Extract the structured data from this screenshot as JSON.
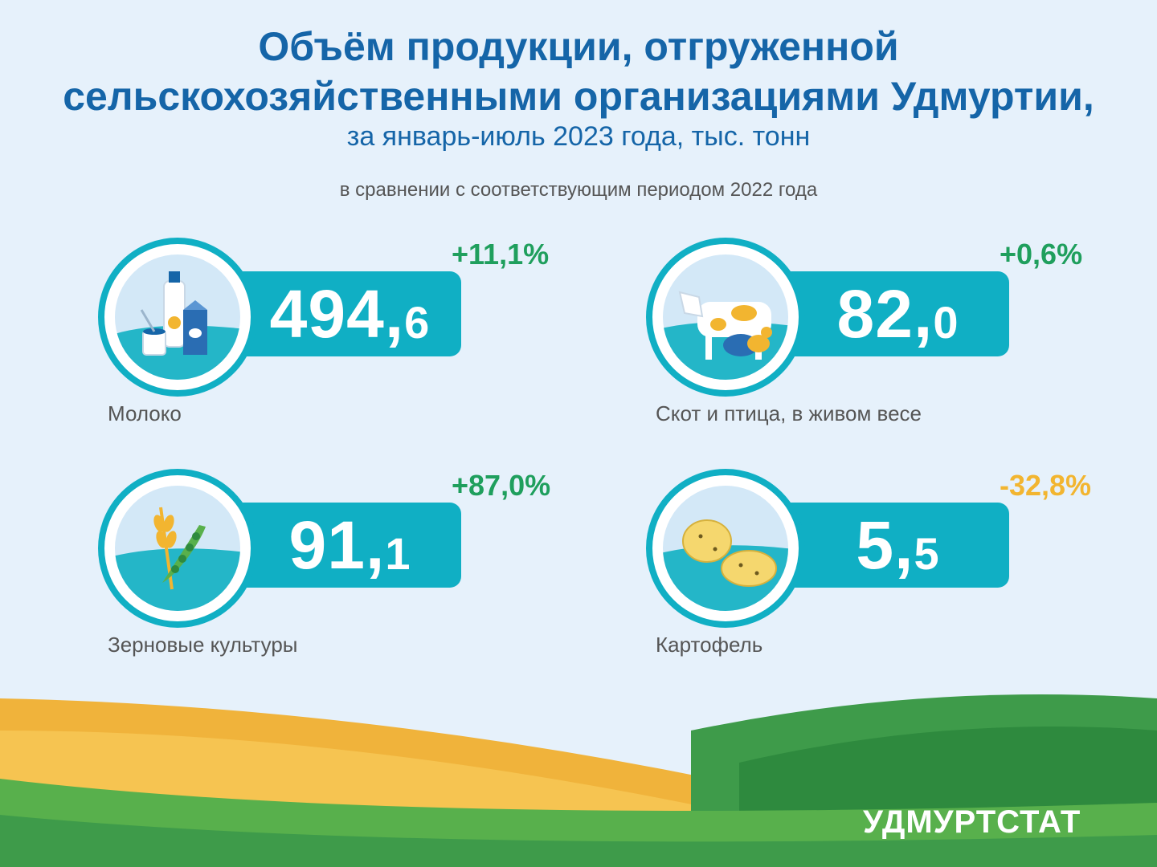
{
  "header": {
    "title_line1": "Объём продукции, отгруженной",
    "title_line2": "сельскохозяйственными организациями Удмуртии,",
    "subtitle": "за январь-июль 2023 года, тыс. тонн",
    "comparison_note": "в сравнении с соответствующим периодом 2022 года"
  },
  "items": [
    {
      "label": "Молоко",
      "value_int": "494,",
      "value_dec": "6",
      "change": "+11,1%",
      "change_dir": "up",
      "icon": "milk-icon"
    },
    {
      "label": "Скот и птица, в живом весе",
      "value_int": "82,",
      "value_dec": "0",
      "change": "+0,6%",
      "change_dir": "up",
      "icon": "livestock-icon"
    },
    {
      "label": "Зерновые культуры",
      "value_int": "91,",
      "value_dec": "1",
      "change": "+87,0%",
      "change_dir": "up",
      "icon": "grain-icon"
    },
    {
      "label": "Картофель",
      "value_int": "5,",
      "value_dec": "5",
      "change": "-32,8%",
      "change_dir": "down",
      "icon": "potato-icon"
    }
  ],
  "footer": {
    "brand": "УДМУРТСТАТ"
  },
  "colors": {
    "title": "#1565a8",
    "accent": "#10afc4",
    "increase": "#1f9f5d",
    "decrease": "#f2b530"
  }
}
